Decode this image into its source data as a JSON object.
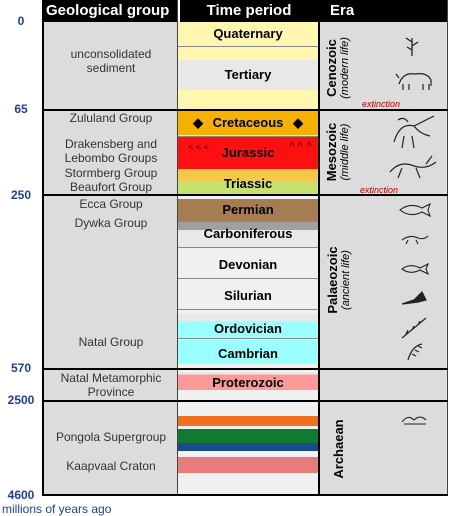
{
  "headers": {
    "group": "Geological group",
    "period": "Time period",
    "era": "Era"
  },
  "ticks": [
    "0",
    "65",
    "250",
    "570",
    "2500",
    "4600"
  ],
  "axis_caption": "millions of years ago",
  "groups": {
    "unconsolidated": "unconsolidated\nsediment",
    "zululand": "Zululand Group",
    "drakensberg": "Drakensberg and\nLebombo Groups",
    "stormberg": "Stormberg Group",
    "beaufort": "Beaufort Group",
    "ecca": "Ecca Group",
    "dywka": "Dywka Group",
    "natal": "Natal Group",
    "natal_meta": "Natal Metamorphic\nProvince",
    "pongola": "Pongola Supergroup",
    "kaapvaal": "Kaapvaal Craton"
  },
  "periods": {
    "quaternary": "Quaternary",
    "tertiary": "Tertiary",
    "cretaceous": "Cretaceous",
    "jurassic": "Jurassic",
    "triassic": "Triassic",
    "permian": "Permian",
    "carboniferous": "Carboniferous",
    "devonian": "Devonian",
    "silurian": "Silurian",
    "ordovician": "Ordovician",
    "cambrian": "Cambrian",
    "proterozoic": "Proterozoic"
  },
  "eras": {
    "cenozoic": {
      "name": "Cenozoic",
      "sub": "(modern life)"
    },
    "mesozoic": {
      "name": "Mesozoic",
      "sub": "(middle life)"
    },
    "palaeozoic": {
      "name": "Palaeozoic",
      "sub": "(ancient life)"
    },
    "archaean": {
      "name": "Archaean"
    }
  },
  "extinction": "extinction",
  "colors": {
    "quaternary": "#fff7b0",
    "tertiary": "#e8e8e8",
    "cretaceous": "#f5b000",
    "jurassic": "#ff1010",
    "triassic_top": "#f5c84a",
    "triassic_bot": "#c8e070",
    "permian": "#a67c52",
    "carboniferous": "#a0a0a0",
    "ordovician": "#99ffff",
    "cambrian": "#99ffff",
    "proterozoic": "#ff9999",
    "tick": "#1c3fa0",
    "arch_orange": "#f07020",
    "arch_green": "#107a30",
    "arch_blue": "#1a4a8a",
    "arch_pink": "#e67c7c"
  }
}
